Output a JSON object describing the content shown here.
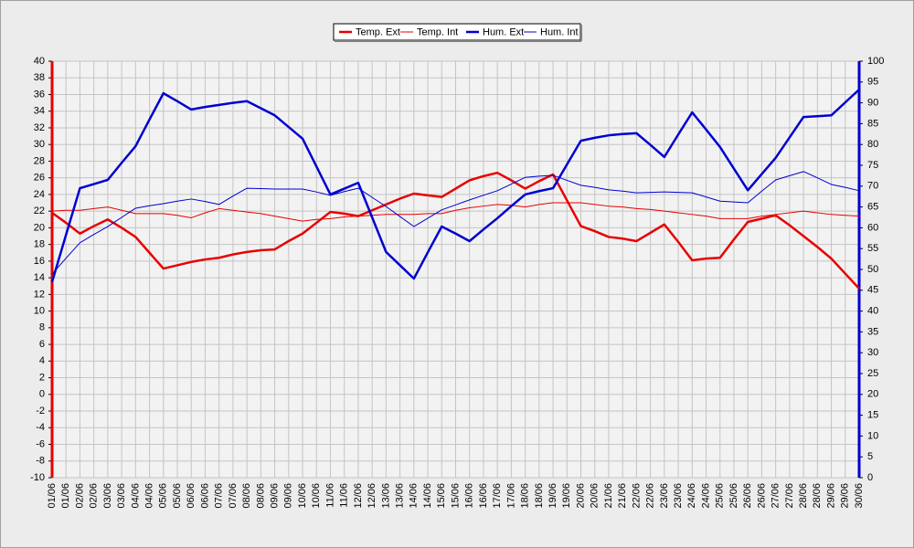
{
  "chart_data": {
    "type": "line",
    "categories": [
      "01/06",
      "01/06",
      "02/06",
      "02/06",
      "03/06",
      "03/06",
      "04/06",
      "04/06",
      "05/06",
      "05/06",
      "06/06",
      "06/06",
      "07/06",
      "07/06",
      "08/06",
      "08/06",
      "09/06",
      "09/06",
      "10/06",
      "10/06",
      "11/06",
      "11/06",
      "12/06",
      "12/06",
      "13/06",
      "13/06",
      "14/06",
      "14/06",
      "15/06",
      "15/06",
      "16/06",
      "16/06",
      "17/06",
      "17/06",
      "18/06",
      "18/06",
      "19/06",
      "19/06",
      "20/06",
      "20/06",
      "21/06",
      "21/06",
      "22/06",
      "22/06",
      "23/06",
      "23/06",
      "24/06",
      "24/06",
      "25/06",
      "25/06",
      "26/06",
      "26/06",
      "27/06",
      "27/06",
      "28/06",
      "28/06",
      "29/06",
      "29/06",
      "30/06"
    ],
    "series": [
      {
        "name": "Temp. Ext",
        "color": "#e80000",
        "line_width": 2.5,
        "axis": "y",
        "values": [
          21.8,
          20.6,
          19.3,
          20.2,
          21.0,
          20.0,
          18.9,
          17.0,
          15.1,
          15.5,
          15.9,
          16.2,
          16.4,
          16.8,
          17.1,
          17.3,
          17.4,
          18.4,
          19.3,
          20.6,
          21.9,
          21.7,
          21.4,
          22.1,
          22.8,
          23.5,
          24.1,
          23.9,
          23.7,
          24.7,
          25.7,
          26.2,
          26.6,
          25.7,
          24.7,
          25.6,
          26.4,
          23.3,
          20.2,
          19.6,
          18.9,
          18.7,
          18.4,
          19.4,
          20.4,
          18.3,
          16.1,
          16.3,
          16.4,
          18.6,
          20.7,
          21.1,
          21.5,
          20.3,
          19.0,
          17.7,
          16.3,
          14.5,
          12.7
        ]
      },
      {
        "name": "Temp. Int",
        "color": "#e80000",
        "line_width": 1,
        "axis": "y",
        "values": [
          22.0,
          22.1,
          22.1,
          22.3,
          22.5,
          22.1,
          21.7,
          21.7,
          21.7,
          21.5,
          21.2,
          21.8,
          22.3,
          22.1,
          21.9,
          21.7,
          21.4,
          21.1,
          20.8,
          21.0,
          21.1,
          21.3,
          21.4,
          21.5,
          21.6,
          21.6,
          21.6,
          21.7,
          21.7,
          22.1,
          22.4,
          22.6,
          22.8,
          22.7,
          22.5,
          22.8,
          23.0,
          23.0,
          23.0,
          22.8,
          22.6,
          22.5,
          22.3,
          22.2,
          22.0,
          21.8,
          21.6,
          21.4,
          21.1,
          21.1,
          21.1,
          21.4,
          21.6,
          21.8,
          22.0,
          21.8,
          21.6,
          21.5,
          21.4
        ]
      },
      {
        "name": "Hum. Ext",
        "color": "#0000d0",
        "line_width": 2.5,
        "axis": "y2",
        "values": [
          47.0,
          58.3,
          69.5,
          70.5,
          71.5,
          75.6,
          79.6,
          86.0,
          92.3,
          90.4,
          88.4,
          89.0,
          89.5,
          90.0,
          90.4,
          88.7,
          87.0,
          84.2,
          81.4,
          74.7,
          68.0,
          69.4,
          70.8,
          62.5,
          54.2,
          51.0,
          47.8,
          54.1,
          60.3,
          58.6,
          56.8,
          59.6,
          62.3,
          65.2,
          68.0,
          68.8,
          69.5,
          75.2,
          80.9,
          81.6,
          82.2,
          82.5,
          82.7,
          79.9,
          77.0,
          82.4,
          87.7,
          83.6,
          79.4,
          74.2,
          69.0,
          72.9,
          76.8,
          81.7,
          86.6,
          86.8,
          87.0,
          90.1,
          93.2
        ]
      },
      {
        "name": "Hum. Int",
        "color": "#0000d0",
        "line_width": 1,
        "axis": "y2",
        "values": [
          48.9,
          52.7,
          56.4,
          58.4,
          60.3,
          62.5,
          64.7,
          65.3,
          65.8,
          66.4,
          66.9,
          66.3,
          65.6,
          67.6,
          69.5,
          69.4,
          69.3,
          69.3,
          69.3,
          68.6,
          67.8,
          68.7,
          69.5,
          67.3,
          65.1,
          62.7,
          60.3,
          62.3,
          64.3,
          65.5,
          66.7,
          67.8,
          68.9,
          70.5,
          72.1,
          72.4,
          72.6,
          71.4,
          70.2,
          69.7,
          69.1,
          68.8,
          68.4,
          68.5,
          68.6,
          68.5,
          68.4,
          67.4,
          66.4,
          66.2,
          66.0,
          68.8,
          71.5,
          72.5,
          73.5,
          72.0,
          70.4,
          69.7,
          68.9
        ]
      }
    ],
    "ylim": [
      -10,
      40
    ],
    "yticks": [
      -10,
      -8,
      -6,
      -4,
      -2,
      0,
      2,
      4,
      6,
      8,
      10,
      12,
      14,
      16,
      18,
      20,
      22,
      24,
      26,
      28,
      30,
      32,
      34,
      36,
      38,
      40
    ],
    "y_axis_color": "#e80000",
    "y2lim": [
      0,
      100
    ],
    "y2ticks": [
      0,
      5,
      10,
      15,
      20,
      25,
      30,
      35,
      40,
      45,
      50,
      55,
      60,
      65,
      70,
      75,
      80,
      85,
      90,
      95,
      100
    ],
    "y2_axis_color": "#0000d0",
    "grid": true,
    "legend": "top"
  }
}
